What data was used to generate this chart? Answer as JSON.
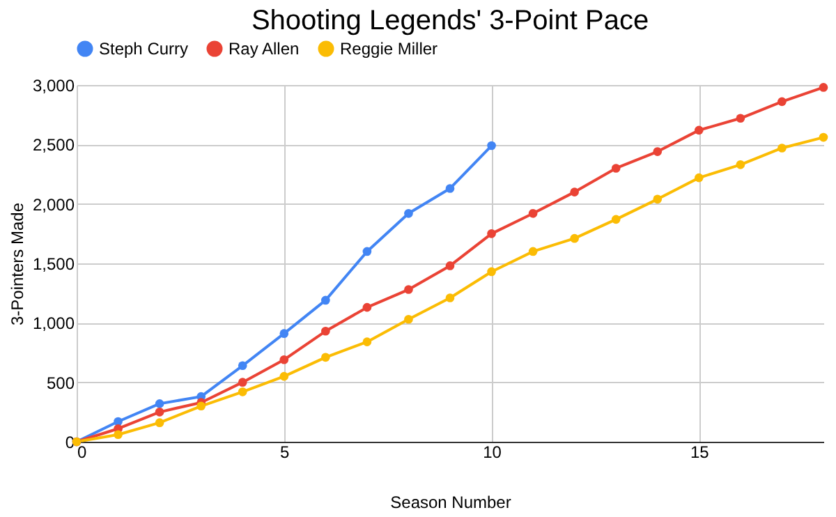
{
  "chart_data": {
    "type": "line",
    "title": "Shooting Legends' 3-Point Pace",
    "xlabel": "Season Number",
    "ylabel": "3-Pointers Made",
    "x": [
      0,
      1,
      2,
      3,
      4,
      5,
      6,
      7,
      8,
      9,
      10,
      11,
      12,
      13,
      14,
      15,
      16,
      17,
      18
    ],
    "series": [
      {
        "name": "Steph Curry",
        "color": "#4285f4",
        "values": [
          0,
          170,
          320,
          380,
          640,
          910,
          1190,
          1600,
          1920,
          2130,
          2490,
          null,
          null,
          null,
          null,
          null,
          null,
          null,
          null
        ]
      },
      {
        "name": "Ray Allen",
        "color": "#ea4335",
        "values": [
          0,
          110,
          250,
          330,
          500,
          690,
          930,
          1130,
          1280,
          1480,
          1750,
          1920,
          2100,
          2300,
          2440,
          2620,
          2720,
          2860,
          2980
        ]
      },
      {
        "name": "Reggie Miller",
        "color": "#fbbc04",
        "values": [
          0,
          60,
          160,
          300,
          420,
          550,
          710,
          840,
          1030,
          1210,
          1430,
          1600,
          1710,
          1870,
          2040,
          2220,
          2330,
          2470,
          2560
        ]
      }
    ],
    "xlim": [
      0,
      18
    ],
    "xticks": [
      0,
      5,
      10,
      15
    ],
    "ylim": [
      0,
      3000
    ],
    "yticks": [
      0,
      {
        "value": 500,
        "label": "500"
      },
      {
        "value": 1000,
        "label": "1,000"
      },
      {
        "value": 1500,
        "label": "1,500"
      },
      {
        "value": 2000,
        "label": "2,000"
      },
      {
        "value": 2500,
        "label": "2,500"
      },
      {
        "value": 3000,
        "label": "3,000"
      }
    ],
    "grid": true,
    "legend": "top",
    "marker": "circle",
    "line_style": "solid"
  }
}
